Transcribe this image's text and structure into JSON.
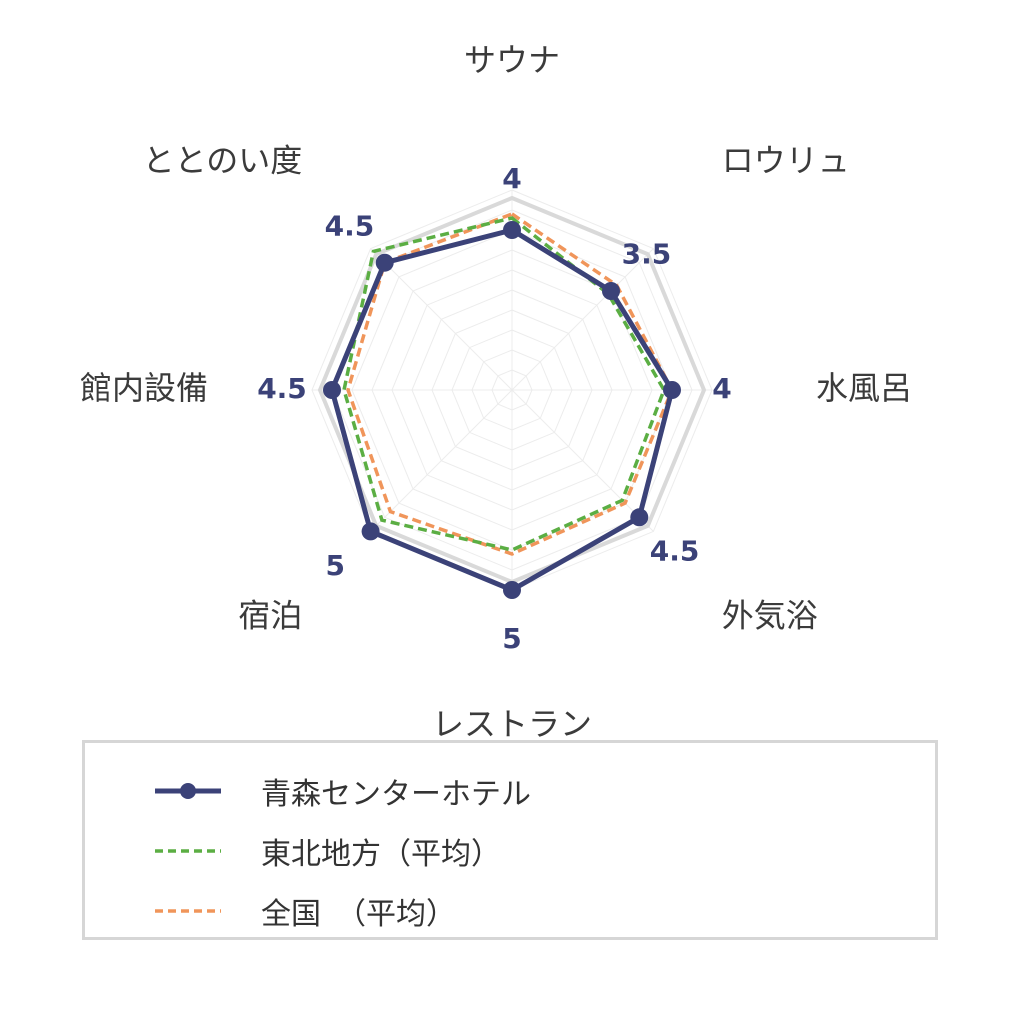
{
  "chart_data": {
    "type": "radar",
    "axes": [
      "サウナ",
      "ロウリュ",
      "水風呂",
      "外気浴",
      "レストラン",
      "宿泊",
      "館内設備",
      "ととのい度"
    ],
    "range": [
      0,
      5
    ],
    "series": [
      {
        "name": "青森センターホテル",
        "values": [
          4,
          3.5,
          4,
          4.5,
          5,
          5,
          4.5,
          4.5
        ],
        "color": "#3b4278",
        "style": "solid-markers",
        "show_value_labels": true
      },
      {
        "name": "東北地方（平均）",
        "values": [
          4.3,
          3.4,
          3.8,
          3.9,
          4.0,
          4.6,
          4.2,
          4.9
        ],
        "color": "#5bae43",
        "style": "dashed"
      },
      {
        "name": "全国　（平均）",
        "values": [
          4.4,
          3.7,
          4.0,
          4.0,
          4.1,
          4.3,
          4.1,
          4.5
        ],
        "color": "#f0955a",
        "style": "dashed"
      }
    ],
    "max_ring_color": "#d9d9d9",
    "grid": true,
    "legend_position": "bottom"
  },
  "value_labels": [
    "4",
    "3.5",
    "4",
    "4.5",
    "5",
    "5",
    "4.5",
    "4.5"
  ],
  "colors": {
    "label_text": "#3b3b3b",
    "value_text": "#3b4278",
    "grid": "#ececec"
  }
}
